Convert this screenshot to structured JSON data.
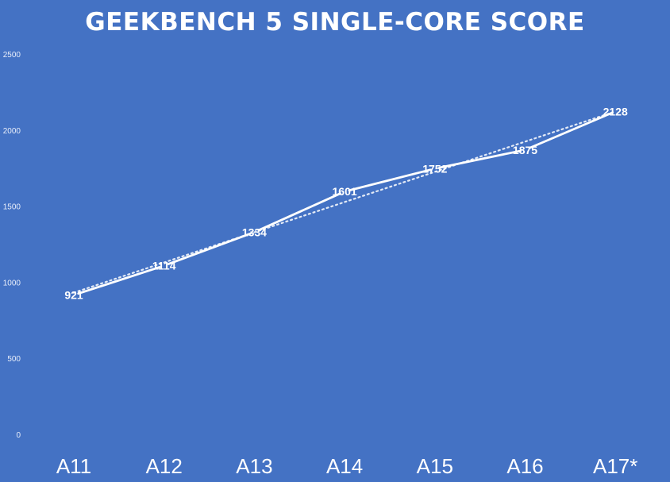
{
  "chart_data": {
    "type": "line",
    "title": "GEEKBENCH 5 SINGLE-CORE SCORE",
    "categories": [
      "A11",
      "A12",
      "A13",
      "A14",
      "A15",
      "A16",
      "A17*"
    ],
    "series": [
      {
        "values": [
          921,
          1114,
          1334,
          1601,
          1752,
          1875,
          2128
        ]
      }
    ],
    "data_labels": [
      "921",
      "1114",
      "1334",
      "1601",
      "1752",
      "1875",
      "2128"
    ],
    "trendline": "linear",
    "y_ticks": [
      "0",
      "500",
      "1000",
      "1500",
      "2000",
      "2500"
    ],
    "ylim": [
      0,
      2500
    ],
    "grid": false,
    "legend": "none",
    "colors": {
      "background": "#4472c4",
      "line": "#ffffff",
      "drop_lines": "#ffffff"
    }
  }
}
